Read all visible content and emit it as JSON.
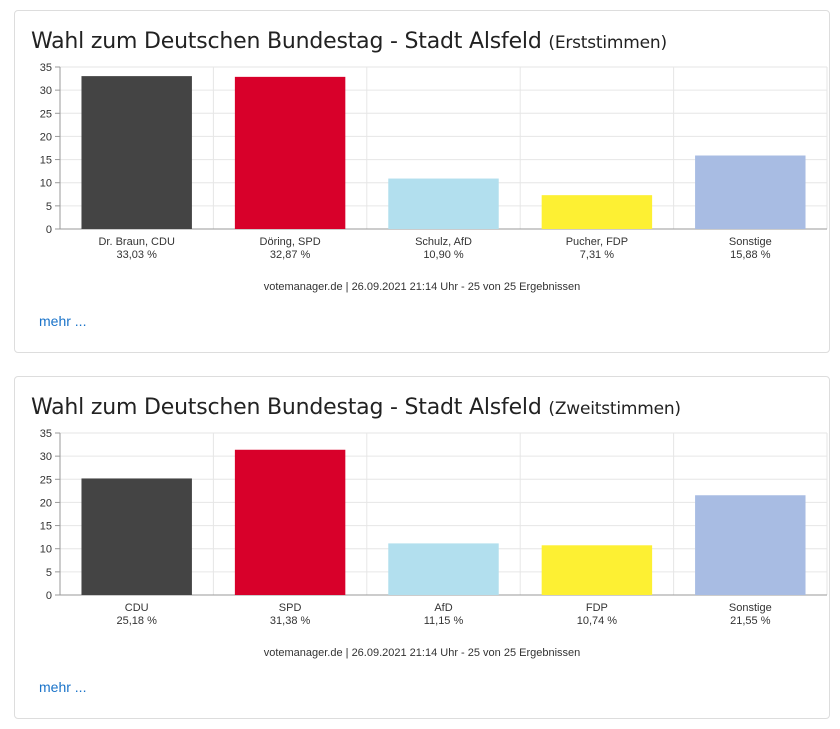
{
  "colors": {
    "CDU": "#444444",
    "SPD": "#d8002a",
    "AfD": "#b2dfee",
    "FDP": "#fdf033",
    "Sonstige": "#a8bce3"
  },
  "more_label": "mehr ...",
  "chart_data": [
    {
      "type": "bar",
      "title": "Wahl zum Deutschen Bundestag - Stadt Alsfeld",
      "subtitle": "(Erststimmen)",
      "categories": [
        "Dr. Braun, CDU",
        "Döring, SPD",
        "Schulz, AfD",
        "Pucher, FDP",
        "Sonstige"
      ],
      "value_labels": [
        "33,03 %",
        "32,87 %",
        "10,90 %",
        "7,31 %",
        "15,88 %"
      ],
      "values": [
        33.03,
        32.87,
        10.9,
        7.31,
        15.88
      ],
      "bar_colors": [
        "#444444",
        "#d8002a",
        "#b2dfee",
        "#fdf033",
        "#a8bce3"
      ],
      "ylim": [
        0,
        35
      ],
      "yticks": [
        0,
        5,
        10,
        15,
        20,
        25,
        30,
        35
      ],
      "grid": true,
      "xlabel": "",
      "ylabel": "",
      "footer": "votemanager.de | 26.09.2021 21:14 Uhr - 25 von 25 Ergebnissen"
    },
    {
      "type": "bar",
      "title": "Wahl zum Deutschen Bundestag - Stadt Alsfeld",
      "subtitle": "(Zweitstimmen)",
      "categories": [
        "CDU",
        "SPD",
        "AfD",
        "FDP",
        "Sonstige"
      ],
      "value_labels": [
        "25,18 %",
        "31,38 %",
        "11,15 %",
        "10,74 %",
        "21,55 %"
      ],
      "values": [
        25.18,
        31.38,
        11.15,
        10.74,
        21.55
      ],
      "bar_colors": [
        "#444444",
        "#d8002a",
        "#b2dfee",
        "#fdf033",
        "#a8bce3"
      ],
      "ylim": [
        0,
        35
      ],
      "yticks": [
        0,
        5,
        10,
        15,
        20,
        25,
        30,
        35
      ],
      "grid": true,
      "xlabel": "",
      "ylabel": "",
      "footer": "votemanager.de | 26.09.2021 21:14 Uhr - 25 von 25 Ergebnissen"
    }
  ]
}
